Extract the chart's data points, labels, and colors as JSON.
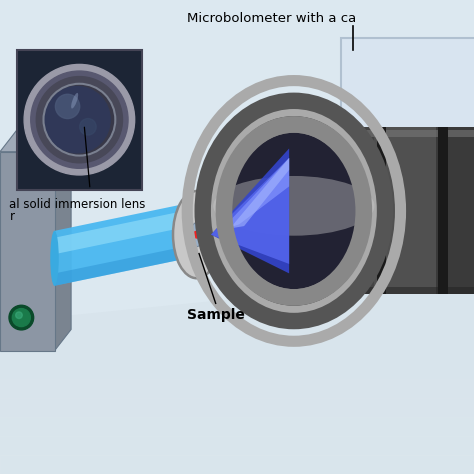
{
  "label_microbolometer": "Microbolometer with a ca",
  "label_lens_line1": "al solid immersion lens",
  "label_lens_line2": "r",
  "label_sample": "Sample",
  "bg_wall": "#dce8f0",
  "bg_floor_top": "#c8d8e4",
  "bg_floor_bot": "#e0eaf2",
  "source_front": "#8c96a4",
  "source_top": "#a0aab8",
  "source_side": "#7a8490",
  "beam_main": "#4ab8f0",
  "beam_light": "#88d8f8",
  "cone_dark": "#3344cc",
  "cone_mid": "#5566ee",
  "cone_light": "#8899ff",
  "ring_outer": "#555555",
  "ring_mid": "#888888",
  "ring_light": "#aaaaaa",
  "ring_inner_dark": "#222222",
  "body_dark": "#333333",
  "body_mid": "#555555",
  "sample_gray": "#b0b0b0",
  "sample_edge": "#888888",
  "inset_bg": "#1a2030",
  "inset_border": "#555566",
  "green_dark": "#0a4a2a",
  "green_mid": "#1a7a4a"
}
